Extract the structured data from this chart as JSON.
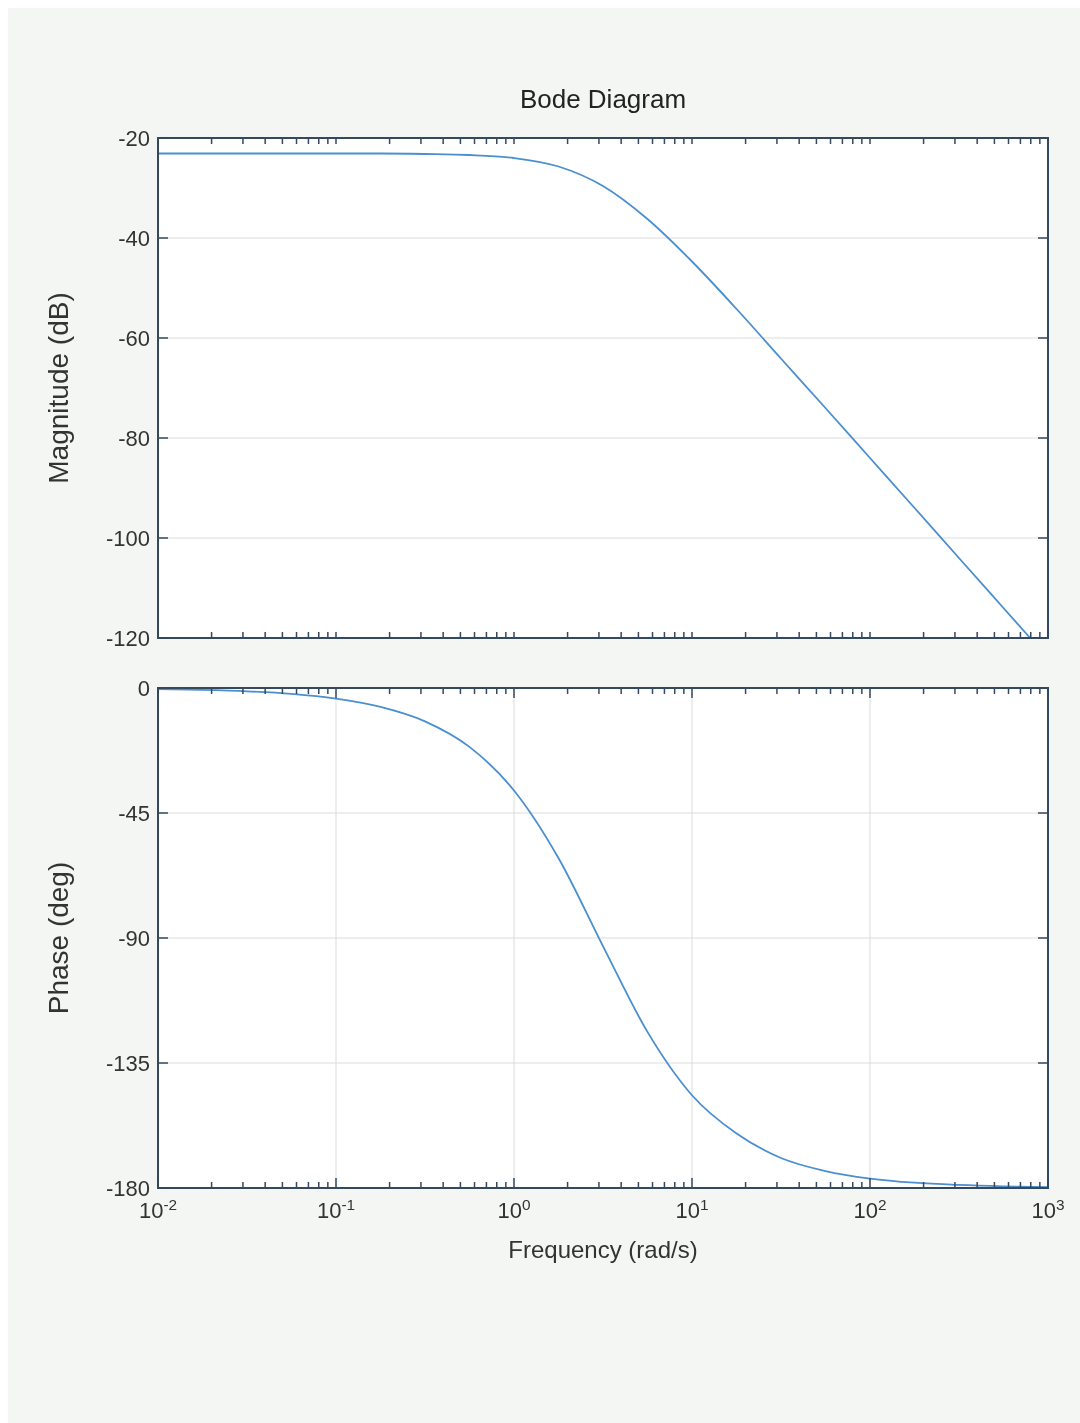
{
  "chart_data": [
    {
      "type": "line",
      "title": "Bode Diagram",
      "ylabel": "Magnitude (dB)",
      "log": "x",
      "grid": true,
      "tick_labels": "y",
      "xlim": [
        0.01,
        1000
      ],
      "xticks": [
        {
          "value": 0.01,
          "label": null
        },
        {
          "value": 0.02,
          "label": null
        },
        {
          "value": 0.03,
          "label": null
        },
        {
          "value": 0.04,
          "label": null
        },
        {
          "value": 0.05,
          "label": null
        },
        {
          "value": 0.06,
          "label": null
        },
        {
          "value": 0.07,
          "label": null
        },
        {
          "value": 0.08,
          "label": null
        },
        {
          "value": 0.09,
          "label": null
        },
        {
          "value": 0.1,
          "label": null
        },
        {
          "value": 0.2,
          "label": null
        },
        {
          "value": 0.3,
          "label": null
        },
        {
          "value": 0.4,
          "label": null
        },
        {
          "value": 0.5,
          "label": null
        },
        {
          "value": 0.6,
          "label": null
        },
        {
          "value": 0.7,
          "label": null
        },
        {
          "value": 0.8,
          "label": null
        },
        {
          "value": 0.9,
          "label": null
        },
        {
          "value": 1,
          "label": null
        },
        {
          "value": 2,
          "label": null
        },
        {
          "value": 3,
          "label": null
        },
        {
          "value": 4,
          "label": null
        },
        {
          "value": 5,
          "label": null
        },
        {
          "value": 6,
          "label": null
        },
        {
          "value": 7,
          "label": null
        },
        {
          "value": 8,
          "label": null
        },
        {
          "value": 9,
          "label": null
        },
        {
          "value": 10,
          "label": null
        },
        {
          "value": 20,
          "label": null
        },
        {
          "value": 30,
          "label": null
        },
        {
          "value": 40,
          "label": null
        },
        {
          "value": 50,
          "label": null
        },
        {
          "value": 60,
          "label": null
        },
        {
          "value": 70,
          "label": null
        },
        {
          "value": 80,
          "label": null
        },
        {
          "value": 90,
          "label": null
        },
        {
          "value": 100,
          "label": null
        },
        {
          "value": 200,
          "label": null
        },
        {
          "value": 300,
          "label": null
        },
        {
          "value": 400,
          "label": null
        },
        {
          "value": 500,
          "label": null
        },
        {
          "value": 600,
          "label": null
        },
        {
          "value": 700,
          "label": null
        },
        {
          "value": 800,
          "label": null
        },
        {
          "value": 900,
          "label": null
        },
        {
          "value": 1000,
          "label": null
        }
      ],
      "ylim": [
        -120,
        -20
      ],
      "yticks": [
        -120,
        -100,
        -80,
        -60,
        -40,
        -20
      ],
      "series": [
        {
          "color": "#4a8fd0",
          "x": [
            0.01,
            0.0178,
            0.0316,
            0.0562,
            0.1,
            0.178,
            0.316,
            0.562,
            1,
            1.78,
            3.16,
            5.62,
            10,
            17.8,
            31.6,
            56.2,
            100,
            178,
            316,
            562,
            794
          ],
          "values": [
            -23.1,
            -23.1,
            -23.1,
            -23.1,
            -23.1,
            -23.1,
            -23.2,
            -23.4,
            -24.0,
            -25.7,
            -29.6,
            -36.2,
            -44.7,
            -54.2,
            -64.1,
            -74.0,
            -84.0,
            -94.0,
            -104.0,
            -114.0,
            -120.0
          ]
        }
      ]
    },
    {
      "type": "line",
      "ylabel": "Phase (deg)",
      "xlabel": "Frequency  (rad/s)",
      "log": "x",
      "grid": true,
      "xlim": [
        0.01,
        1000
      ],
      "xticks": [
        {
          "value": 0.01,
          "label": "10$^{-2}$"
        },
        {
          "value": 0.02,
          "label": null
        },
        {
          "value": 0.03,
          "label": null
        },
        {
          "value": 0.04,
          "label": null
        },
        {
          "value": 0.05,
          "label": null
        },
        {
          "value": 0.06,
          "label": null
        },
        {
          "value": 0.07,
          "label": null
        },
        {
          "value": 0.08,
          "label": null
        },
        {
          "value": 0.09,
          "label": null
        },
        {
          "value": 0.1,
          "label": "10$^{-1}$"
        },
        {
          "value": 0.2,
          "label": null
        },
        {
          "value": 0.3,
          "label": null
        },
        {
          "value": 0.4,
          "label": null
        },
        {
          "value": 0.5,
          "label": null
        },
        {
          "value": 0.6,
          "label": null
        },
        {
          "value": 0.7,
          "label": null
        },
        {
          "value": 0.8,
          "label": null
        },
        {
          "value": 0.9,
          "label": null
        },
        {
          "value": 1,
          "label": "10$^{0}$"
        },
        {
          "value": 2,
          "label": null
        },
        {
          "value": 3,
          "label": null
        },
        {
          "value": 4,
          "label": null
        },
        {
          "value": 5,
          "label": null
        },
        {
          "value": 6,
          "label": null
        },
        {
          "value": 7,
          "label": null
        },
        {
          "value": 8,
          "label": null
        },
        {
          "value": 9,
          "label": null
        },
        {
          "value": 10,
          "label": "10$^{1}$"
        },
        {
          "value": 20,
          "label": null
        },
        {
          "value": 30,
          "label": null
        },
        {
          "value": 40,
          "label": null
        },
        {
          "value": 50,
          "label": null
        },
        {
          "value": 60,
          "label": null
        },
        {
          "value": 70,
          "label": null
        },
        {
          "value": 80,
          "label": null
        },
        {
          "value": 90,
          "label": null
        },
        {
          "value": 100,
          "label": "10$^{2}$"
        },
        {
          "value": 200,
          "label": null
        },
        {
          "value": 300,
          "label": null
        },
        {
          "value": 400,
          "label": null
        },
        {
          "value": 500,
          "label": null
        },
        {
          "value": 600,
          "label": null
        },
        {
          "value": 700,
          "label": null
        },
        {
          "value": 800,
          "label": null
        },
        {
          "value": 900,
          "label": null
        },
        {
          "value": 1000,
          "label": "10$^{3}$"
        }
      ],
      "ylim": [
        -180,
        0
      ],
      "yticks": [
        -180,
        -135,
        -90,
        -45,
        0
      ],
      "series": [
        {
          "color": "#4a8fd0",
          "x": [
            0.01,
            0.0178,
            0.0316,
            0.0562,
            0.1,
            0.178,
            0.316,
            0.562,
            1,
            1.78,
            3.16,
            5.62,
            10,
            17.8,
            31.6,
            56.2,
            100,
            178,
            316,
            562,
            1000
          ],
          "values": [
            -0.4,
            -0.7,
            -1.2,
            -2.1,
            -3.8,
            -6.8,
            -12.0,
            -21.2,
            -36.9,
            -61.3,
            -92.9,
            -123.8,
            -146.6,
            -160.4,
            -169.2,
            -173.9,
            -176.6,
            -178.1,
            -178.9,
            -179.4,
            -179.7
          ]
        }
      ]
    }
  ]
}
